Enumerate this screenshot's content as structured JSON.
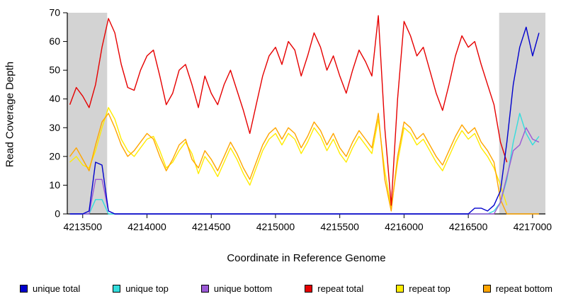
{
  "chart_data": {
    "type": "line",
    "title": "",
    "xlabel": "Coordinate in Reference Genome",
    "ylabel": "Read Coverage Depth",
    "xlim": [
      4213380,
      4217100
    ],
    "ylim": [
      0,
      70
    ],
    "xticks": [
      4213500,
      4214000,
      4214500,
      4215000,
      4215500,
      4216000,
      4216500,
      4217000
    ],
    "yticks": [
      0,
      10,
      20,
      30,
      40,
      50,
      60,
      70
    ],
    "grid": false,
    "legend_position": "bottom",
    "shaded_regions": [
      {
        "x0": 4213380,
        "x1": 4213690,
        "color": "#d3d3d3"
      },
      {
        "x0": 4216740,
        "x1": 4217100,
        "color": "#d3d3d3"
      }
    ],
    "series": [
      {
        "name": "repeat top",
        "color": "#FFEC00",
        "x_start": 4213400,
        "x_step": 50,
        "y": [
          18,
          20,
          17,
          16,
          22,
          30,
          37,
          33,
          26,
          22,
          20,
          23,
          26,
          27,
          22,
          16,
          18,
          22,
          25,
          21,
          14,
          20,
          17,
          13,
          18,
          23,
          19,
          14,
          10,
          16,
          22,
          26,
          28,
          24,
          28,
          26,
          21,
          25,
          30,
          27,
          22,
          26,
          21,
          18,
          23,
          27,
          24,
          21,
          33,
          15,
          2,
          18,
          30,
          28,
          24,
          26,
          22,
          18,
          15,
          20,
          25,
          29,
          26,
          28,
          23,
          20,
          16,
          10,
          3
        ]
      },
      {
        "name": "repeat bottom",
        "color": "#FFA500",
        "x_start": 4213400,
        "x_step": 50,
        "y": [
          20,
          23,
          19,
          15,
          24,
          32,
          35,
          30,
          24,
          20,
          22,
          25,
          28,
          26,
          20,
          15,
          19,
          24,
          26,
          19,
          16,
          22,
          19,
          15,
          20,
          25,
          21,
          16,
          12,
          18,
          24,
          28,
          30,
          26,
          30,
          28,
          23,
          27,
          32,
          29,
          24,
          28,
          23,
          20,
          25,
          29,
          26,
          23,
          35,
          12,
          1,
          20,
          32,
          30,
          26,
          28,
          24,
          20,
          17,
          22,
          27,
          31,
          28,
          30,
          25,
          22,
          18,
          5,
          0,
          0,
          0,
          0,
          0,
          0
        ]
      },
      {
        "name": "repeat total",
        "color": "#E60000",
        "x_start": 4213400,
        "x_step": 50,
        "y": [
          38,
          44,
          41,
          37,
          45,
          58,
          68,
          63,
          52,
          44,
          43,
          50,
          55,
          57,
          48,
          38,
          42,
          50,
          52,
          45,
          37,
          48,
          42,
          38,
          45,
          50,
          43,
          36,
          28,
          38,
          48,
          55,
          58,
          52,
          60,
          57,
          48,
          55,
          63,
          58,
          50,
          55,
          48,
          42,
          50,
          57,
          53,
          48,
          69,
          30,
          3,
          40,
          67,
          62,
          55,
          58,
          50,
          42,
          36,
          45,
          55,
          62,
          58,
          60,
          52,
          45,
          38,
          25,
          18
        ]
      },
      {
        "name": "unique top",
        "color": "#33DDDD",
        "x_start": 4213400,
        "x_step": 50,
        "y": [
          0,
          0,
          0,
          0,
          5,
          5,
          0,
          0,
          0,
          0,
          0,
          0,
          0,
          0,
          0,
          0,
          0,
          0,
          0,
          0,
          0,
          0,
          0,
          0,
          0,
          0,
          0,
          0,
          0,
          0,
          0,
          0,
          0,
          0,
          0,
          0,
          0,
          0,
          0,
          0,
          0,
          0,
          0,
          0,
          0,
          0,
          0,
          0,
          0,
          0,
          0,
          0,
          0,
          0,
          0,
          0,
          0,
          0,
          0,
          0,
          0,
          0,
          0,
          0,
          0,
          0,
          1,
          4,
          12,
          25,
          35,
          28,
          24,
          27
        ]
      },
      {
        "name": "unique bottom",
        "color": "#9B59D6",
        "x_start": 4213400,
        "x_step": 50,
        "y": [
          0,
          0,
          0,
          0,
          12,
          12,
          1,
          0,
          0,
          0,
          0,
          0,
          0,
          0,
          0,
          0,
          0,
          0,
          0,
          0,
          0,
          0,
          0,
          0,
          0,
          0,
          0,
          0,
          0,
          0,
          0,
          0,
          0,
          0,
          0,
          0,
          0,
          0,
          0,
          0,
          0,
          0,
          0,
          0,
          0,
          0,
          0,
          0,
          0,
          0,
          0,
          0,
          0,
          0,
          0,
          0,
          0,
          0,
          0,
          0,
          0,
          0,
          0,
          0,
          0,
          0,
          0,
          4,
          13,
          22,
          24,
          30,
          26,
          25
        ]
      },
      {
        "name": "unique total",
        "color": "#0000CD",
        "x_start": 4213400,
        "x_step": 50,
        "y": [
          0,
          0,
          0,
          1,
          18,
          17,
          1,
          0,
          0,
          0,
          0,
          0,
          0,
          0,
          0,
          0,
          0,
          0,
          0,
          0,
          0,
          0,
          0,
          0,
          0,
          0,
          0,
          0,
          0,
          0,
          0,
          0,
          0,
          0,
          0,
          0,
          0,
          0,
          0,
          0,
          0,
          0,
          0,
          0,
          0,
          0,
          0,
          0,
          0,
          0,
          0,
          0,
          0,
          0,
          0,
          0,
          0,
          0,
          0,
          0,
          0,
          0,
          0,
          2,
          2,
          1,
          3,
          8,
          25,
          45,
          58,
          65,
          55,
          63
        ]
      }
    ]
  },
  "legend": {
    "items": [
      {
        "label": "unique total",
        "color": "#0000CD"
      },
      {
        "label": "unique top",
        "color": "#33DDDD"
      },
      {
        "label": "unique bottom",
        "color": "#9B59D6"
      },
      {
        "label": "repeat total",
        "color": "#E60000"
      },
      {
        "label": "repeat top",
        "color": "#FFEC00"
      },
      {
        "label": "repeat bottom",
        "color": "#FFA500"
      }
    ]
  }
}
